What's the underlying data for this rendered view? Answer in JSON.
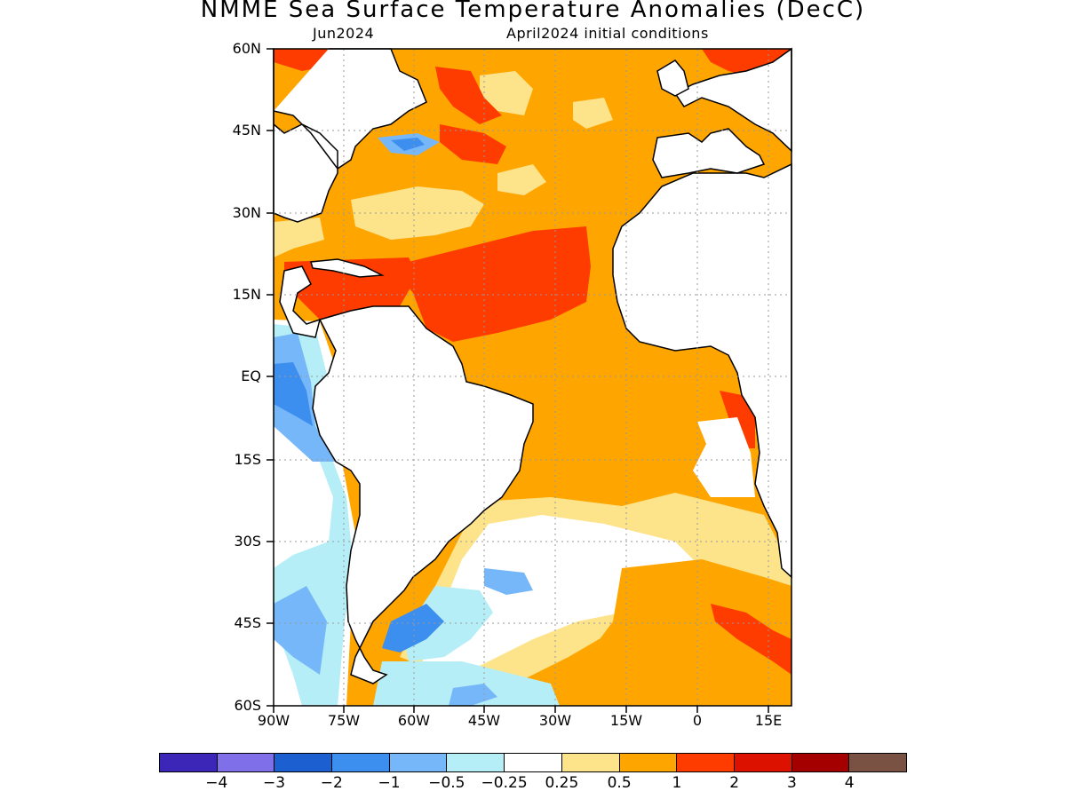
{
  "title": "NMME Sea Surface Temperature Anomalies (DecC)",
  "subtitle_left": "Jun2024",
  "subtitle_right": "April2024 initial conditions",
  "map": {
    "lon_range": [
      -90,
      20
    ],
    "lat_range": [
      -60,
      60
    ],
    "lat_ticks": [
      "60N",
      "45N",
      "30N",
      "15N",
      "EQ",
      "15S",
      "30S",
      "45S",
      "60S"
    ],
    "lon_ticks": [
      "90W",
      "75W",
      "60W",
      "45W",
      "30W",
      "15W",
      "0",
      "15E"
    ],
    "grid": true
  },
  "colorbar": {
    "colors": [
      "#3b26b8",
      "#7f6fe9",
      "#1c5fd0",
      "#3d8fef",
      "#75b7f9",
      "#b5eef7",
      "#ffffff",
      "#fde38a",
      "#ffa500",
      "#ff3c00",
      "#dd1100",
      "#a50000",
      "#7a5244"
    ],
    "labels": [
      "−4",
      "−3",
      "−2",
      "−1",
      "−0.5",
      "−0.25",
      "0.25",
      "0.5",
      "1",
      "2",
      "3",
      "4"
    ]
  }
}
